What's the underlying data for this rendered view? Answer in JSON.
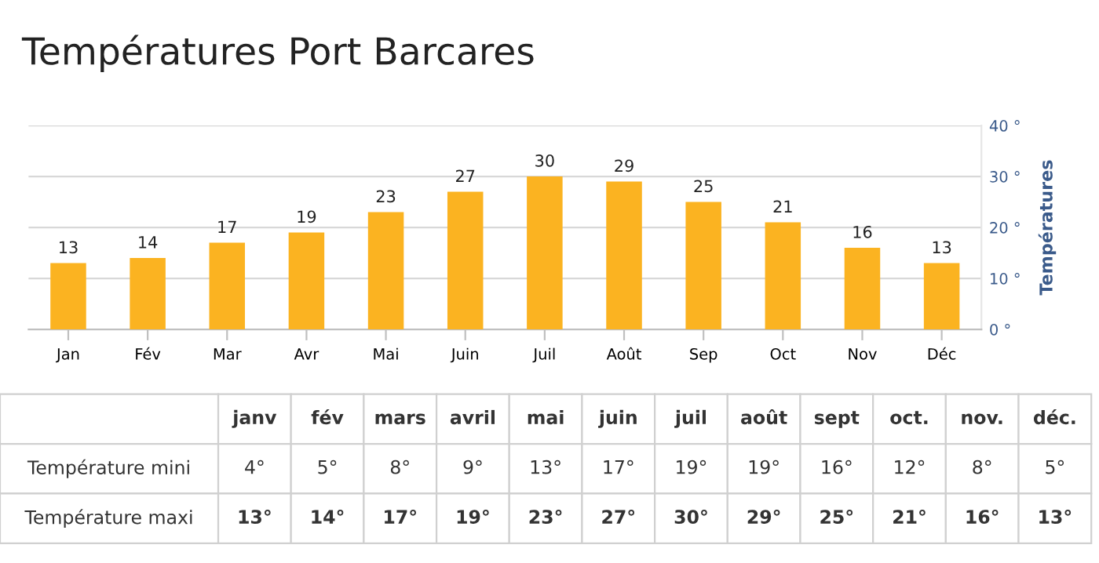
{
  "chart_data": [
    {
      "type": "bar",
      "title": "Températures Port Barcares",
      "y2label": "Températures",
      "categories": [
        "Jan",
        "Fév",
        "Mar",
        "Avr",
        "Mai",
        "Juin",
        "Juil",
        "Août",
        "Sep",
        "Oct",
        "Nov",
        "Déc"
      ],
      "series": [
        {
          "color": "#fbb321",
          "values": [
            13,
            14,
            17,
            19,
            23,
            27,
            30,
            29,
            25,
            21,
            16,
            13
          ],
          "axis": "y2"
        }
      ],
      "y2lim": [
        0,
        40
      ],
      "y2ticks": [
        {
          "value": 0,
          "label": "0 °"
        },
        {
          "value": 10,
          "label": "10 °"
        },
        {
          "value": 20,
          "label": "20 °"
        },
        {
          "value": 30,
          "label": "30 °"
        },
        {
          "value": 40,
          "label": "40 °"
        }
      ],
      "grid": "y",
      "data_labels": true
    },
    {
      "type": "other",
      "categories": [
        "janv",
        "fév",
        "mars",
        "avril",
        "mai",
        "juin",
        "juil",
        "août",
        "sept",
        "oct.",
        "nov.",
        "déc."
      ],
      "series": [
        {
          "name": "Température mini",
          "values": [
            4,
            5,
            8,
            9,
            13,
            17,
            19,
            19,
            16,
            12,
            8,
            5
          ],
          "value_labels": [
            "4°",
            "5°",
            "8°",
            "9°",
            "13°",
            "17°",
            "19°",
            "19°",
            "16°",
            "12°",
            "8°",
            "5°"
          ]
        },
        {
          "name": "Température maxi",
          "values": [
            13,
            14,
            17,
            19,
            23,
            27,
            30,
            29,
            25,
            21,
            16,
            13
          ],
          "value_labels": [
            "13°",
            "14°",
            "17°",
            "19°",
            "23°",
            "27°",
            "30°",
            "29°",
            "25°",
            "21°",
            "16°",
            "13°"
          ]
        }
      ],
      "data_labels": true
    }
  ]
}
